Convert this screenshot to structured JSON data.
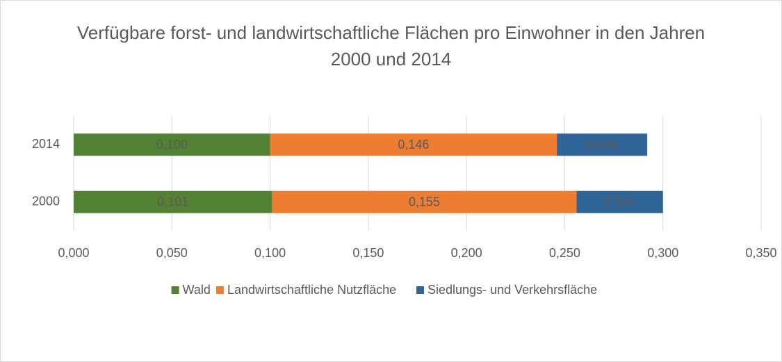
{
  "chart_data": {
    "type": "stacked-barh",
    "title": "Verfügbare forst- und landwirtschaftliche Flächen pro Einwohner in den Jahren 2000 und 2014",
    "categories": [
      "2014",
      "2000"
    ],
    "series": [
      {
        "name": "Wald",
        "color": "#548235",
        "values": [
          0.1,
          0.101
        ],
        "value_labels": [
          "0,100",
          "0,101"
        ]
      },
      {
        "name": "Landwirtschaftliche Nutzfläche",
        "color": "#ed7d31",
        "values": [
          0.146,
          0.155
        ],
        "value_labels": [
          "0,146",
          "0,155"
        ]
      },
      {
        "name": "Siedlungs- und Verkehrsfläche",
        "color": "#2e6596",
        "values": [
          0.046,
          0.044
        ],
        "value_labels": [
          "0,046",
          "0,044"
        ]
      }
    ],
    "xlim": [
      0,
      0.35
    ],
    "xticks": [
      {
        "value": 0,
        "label": "0,000"
      },
      {
        "value": 0.05,
        "label": "0,050"
      },
      {
        "value": 0.1,
        "label": "0,100"
      },
      {
        "value": 0.15,
        "label": "0,150"
      },
      {
        "value": 0.2,
        "label": "0,200"
      },
      {
        "value": 0.25,
        "label": "0,250"
      },
      {
        "value": 0.3,
        "label": "0,300"
      },
      {
        "value": 0.35,
        "label": "0,350"
      }
    ],
    "grid": true,
    "legend": "bottom"
  }
}
